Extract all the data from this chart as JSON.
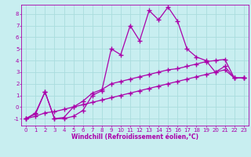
{
  "background_color": "#c8eef0",
  "grid_color": "#aadddd",
  "line_color": "#aa00aa",
  "marker": "+",
  "marker_size": 4,
  "marker_linewidth": 1.0,
  "line_width": 0.9,
  "xlabel": "Windchill (Refroidissement éolien,°C)",
  "xlabel_fontsize": 5.5,
  "tick_fontsize": 5,
  "xlim": [
    -0.5,
    23.5
  ],
  "ylim": [
    -1.6,
    8.8
  ],
  "yticks": [
    -1,
    0,
    1,
    2,
    3,
    4,
    5,
    6,
    7,
    8
  ],
  "xticks": [
    0,
    1,
    2,
    3,
    4,
    5,
    6,
    7,
    8,
    9,
    10,
    11,
    12,
    13,
    14,
    15,
    16,
    17,
    18,
    19,
    20,
    21,
    22,
    23
  ],
  "series": [
    {
      "x": [
        0,
        1,
        2,
        3,
        4,
        5,
        6,
        7,
        8,
        9,
        10,
        11,
        12,
        13,
        14,
        15,
        16,
        17,
        18,
        19,
        20,
        21,
        22,
        23
      ],
      "y": [
        -1.0,
        -0.6,
        1.3,
        -1.0,
        -1.0,
        -0.8,
        -0.3,
        1.0,
        1.4,
        5.0,
        4.5,
        7.0,
        5.7,
        8.3,
        7.5,
        8.6,
        7.4,
        5.0,
        4.3,
        4.0,
        3.0,
        3.5,
        2.5,
        2.5
      ]
    },
    {
      "x": [
        0,
        1,
        2,
        3,
        4,
        5,
        6,
        7,
        8,
        9,
        10,
        11,
        12,
        13,
        14,
        15,
        16,
        17,
        18,
        19,
        20,
        21,
        22,
        23
      ],
      "y": [
        -1.0,
        -0.5,
        1.3,
        -1.0,
        -0.9,
        0.0,
        0.5,
        1.2,
        1.5,
        2.0,
        2.2,
        2.4,
        2.6,
        2.8,
        3.0,
        3.2,
        3.3,
        3.5,
        3.7,
        3.9,
        4.0,
        4.1,
        2.5,
        2.5
      ]
    },
    {
      "x": [
        0,
        1,
        2,
        3,
        4,
        5,
        6,
        7,
        8,
        9,
        10,
        11,
        12,
        13,
        14,
        15,
        16,
        17,
        18,
        19,
        20,
        21,
        22,
        23
      ],
      "y": [
        -1.0,
        -0.8,
        -0.5,
        -0.4,
        -0.2,
        0.0,
        0.2,
        0.4,
        0.6,
        0.8,
        1.0,
        1.2,
        1.4,
        1.6,
        1.8,
        2.0,
        2.2,
        2.4,
        2.6,
        2.8,
        3.0,
        3.2,
        2.5,
        2.5
      ]
    }
  ]
}
